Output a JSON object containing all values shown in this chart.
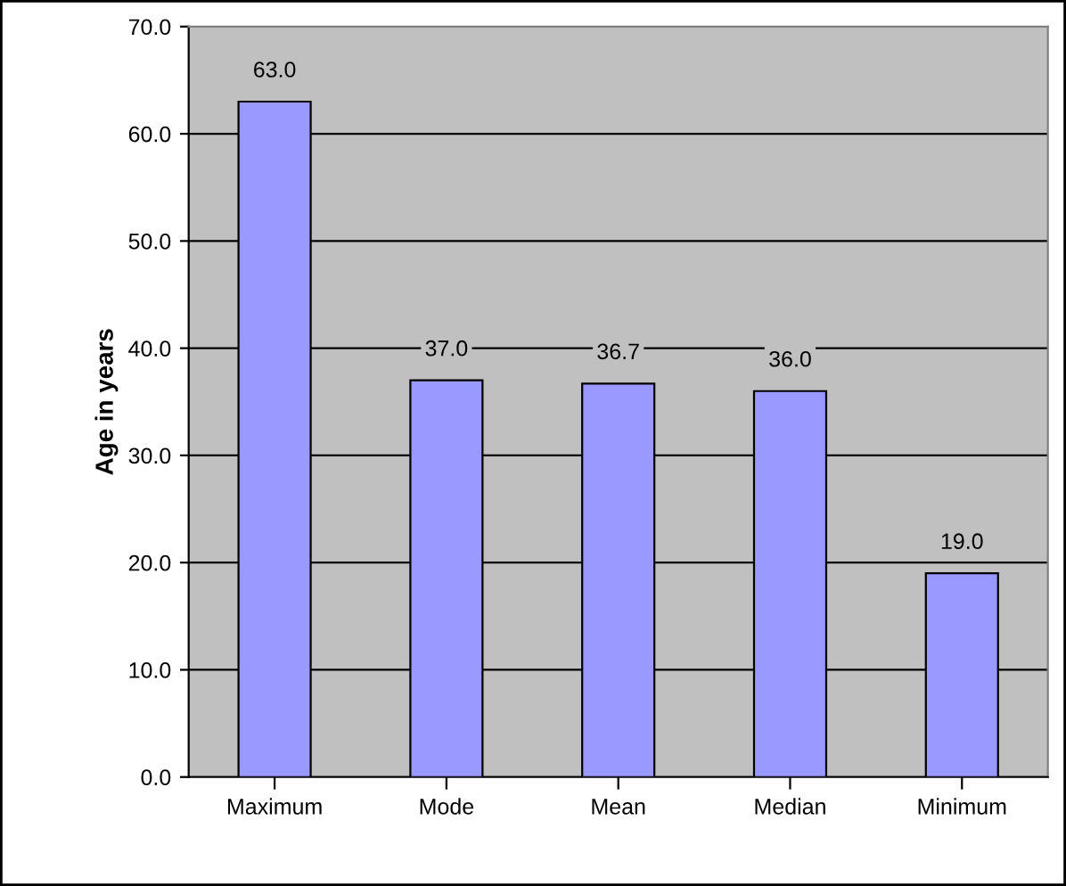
{
  "chart_data": {
    "type": "bar",
    "ylabel": "Age in years",
    "categories": [
      "Maximum",
      "Mode",
      "Mean",
      "Median",
      "Minimum"
    ],
    "values": [
      63.0,
      37.0,
      36.7,
      36.0,
      19.0
    ],
    "value_labels": [
      "63.0",
      "37.0",
      "36.7",
      "36.0",
      "19.0"
    ],
    "color": "#9999ff",
    "ylim": [
      0,
      70
    ],
    "yticks": [
      {
        "value": 0,
        "label": "0.0"
      },
      {
        "value": 10,
        "label": "10.0"
      },
      {
        "value": 20,
        "label": "20.0"
      },
      {
        "value": 30,
        "label": "30.0"
      },
      {
        "value": 40,
        "label": "40.0"
      },
      {
        "value": 50,
        "label": "50.0"
      },
      {
        "value": 60,
        "label": "60.0"
      },
      {
        "value": 70,
        "label": "70.0"
      }
    ],
    "grid": "y"
  }
}
